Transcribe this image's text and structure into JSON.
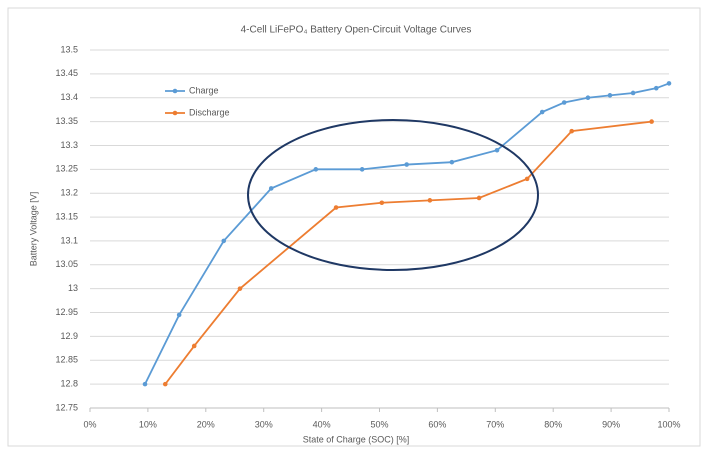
{
  "chart_data": {
    "type": "line",
    "title": "4-Cell LiFePO₄ Battery Open-Circuit Voltage Curves",
    "x_label": "State of Charge (SOC) [%]",
    "y_label": "Battery Voltage [V]",
    "xlim": [
      0,
      100
    ],
    "xticks": [
      {
        "value": 0,
        "label": "0%"
      },
      {
        "value": 10,
        "label": "10%"
      },
      {
        "value": 20,
        "label": "20%"
      },
      {
        "value": 30,
        "label": "30%"
      },
      {
        "value": 40,
        "label": "40%"
      },
      {
        "value": 50,
        "label": "50%"
      },
      {
        "value": 60,
        "label": "60%"
      },
      {
        "value": 70,
        "label": "70%"
      },
      {
        "value": 80,
        "label": "80%"
      },
      {
        "value": 90,
        "label": "90%"
      },
      {
        "value": 100,
        "label": "100%"
      }
    ],
    "ylim": [
      12.75,
      13.5
    ],
    "yticks": [
      12.75,
      12.8,
      12.85,
      12.9,
      12.95,
      13,
      13.05,
      13.1,
      13.15,
      13.2,
      13.25,
      13.3,
      13.35,
      13.4,
      13.45,
      13.5
    ],
    "grid": true,
    "legend": "top-left",
    "series": [
      {
        "name": "Charge",
        "color": "#5b9bd5",
        "x": [
          9.5,
          15.4,
          23.1,
          31.3,
          39,
          47,
          54.7,
          62.5,
          70.3,
          78.1,
          81.9,
          86,
          89.8,
          93.8,
          97.8,
          100
        ],
        "values": [
          12.8,
          12.945,
          13.1,
          13.21,
          13.25,
          13.25,
          13.26,
          13.265,
          13.29,
          13.37,
          13.39,
          13.4,
          13.405,
          13.41,
          13.42,
          13.43
        ]
      },
      {
        "name": "Discharge",
        "color": "#ed7d31",
        "x": [
          13,
          18,
          25.9,
          42.5,
          50.4,
          58.7,
          67.2,
          75.5,
          83.2,
          97
        ],
        "values": [
          12.8,
          12.88,
          13,
          13.17,
          13.18,
          13.185,
          13.19,
          13.23,
          13.33,
          13.35
        ]
      }
    ]
  }
}
